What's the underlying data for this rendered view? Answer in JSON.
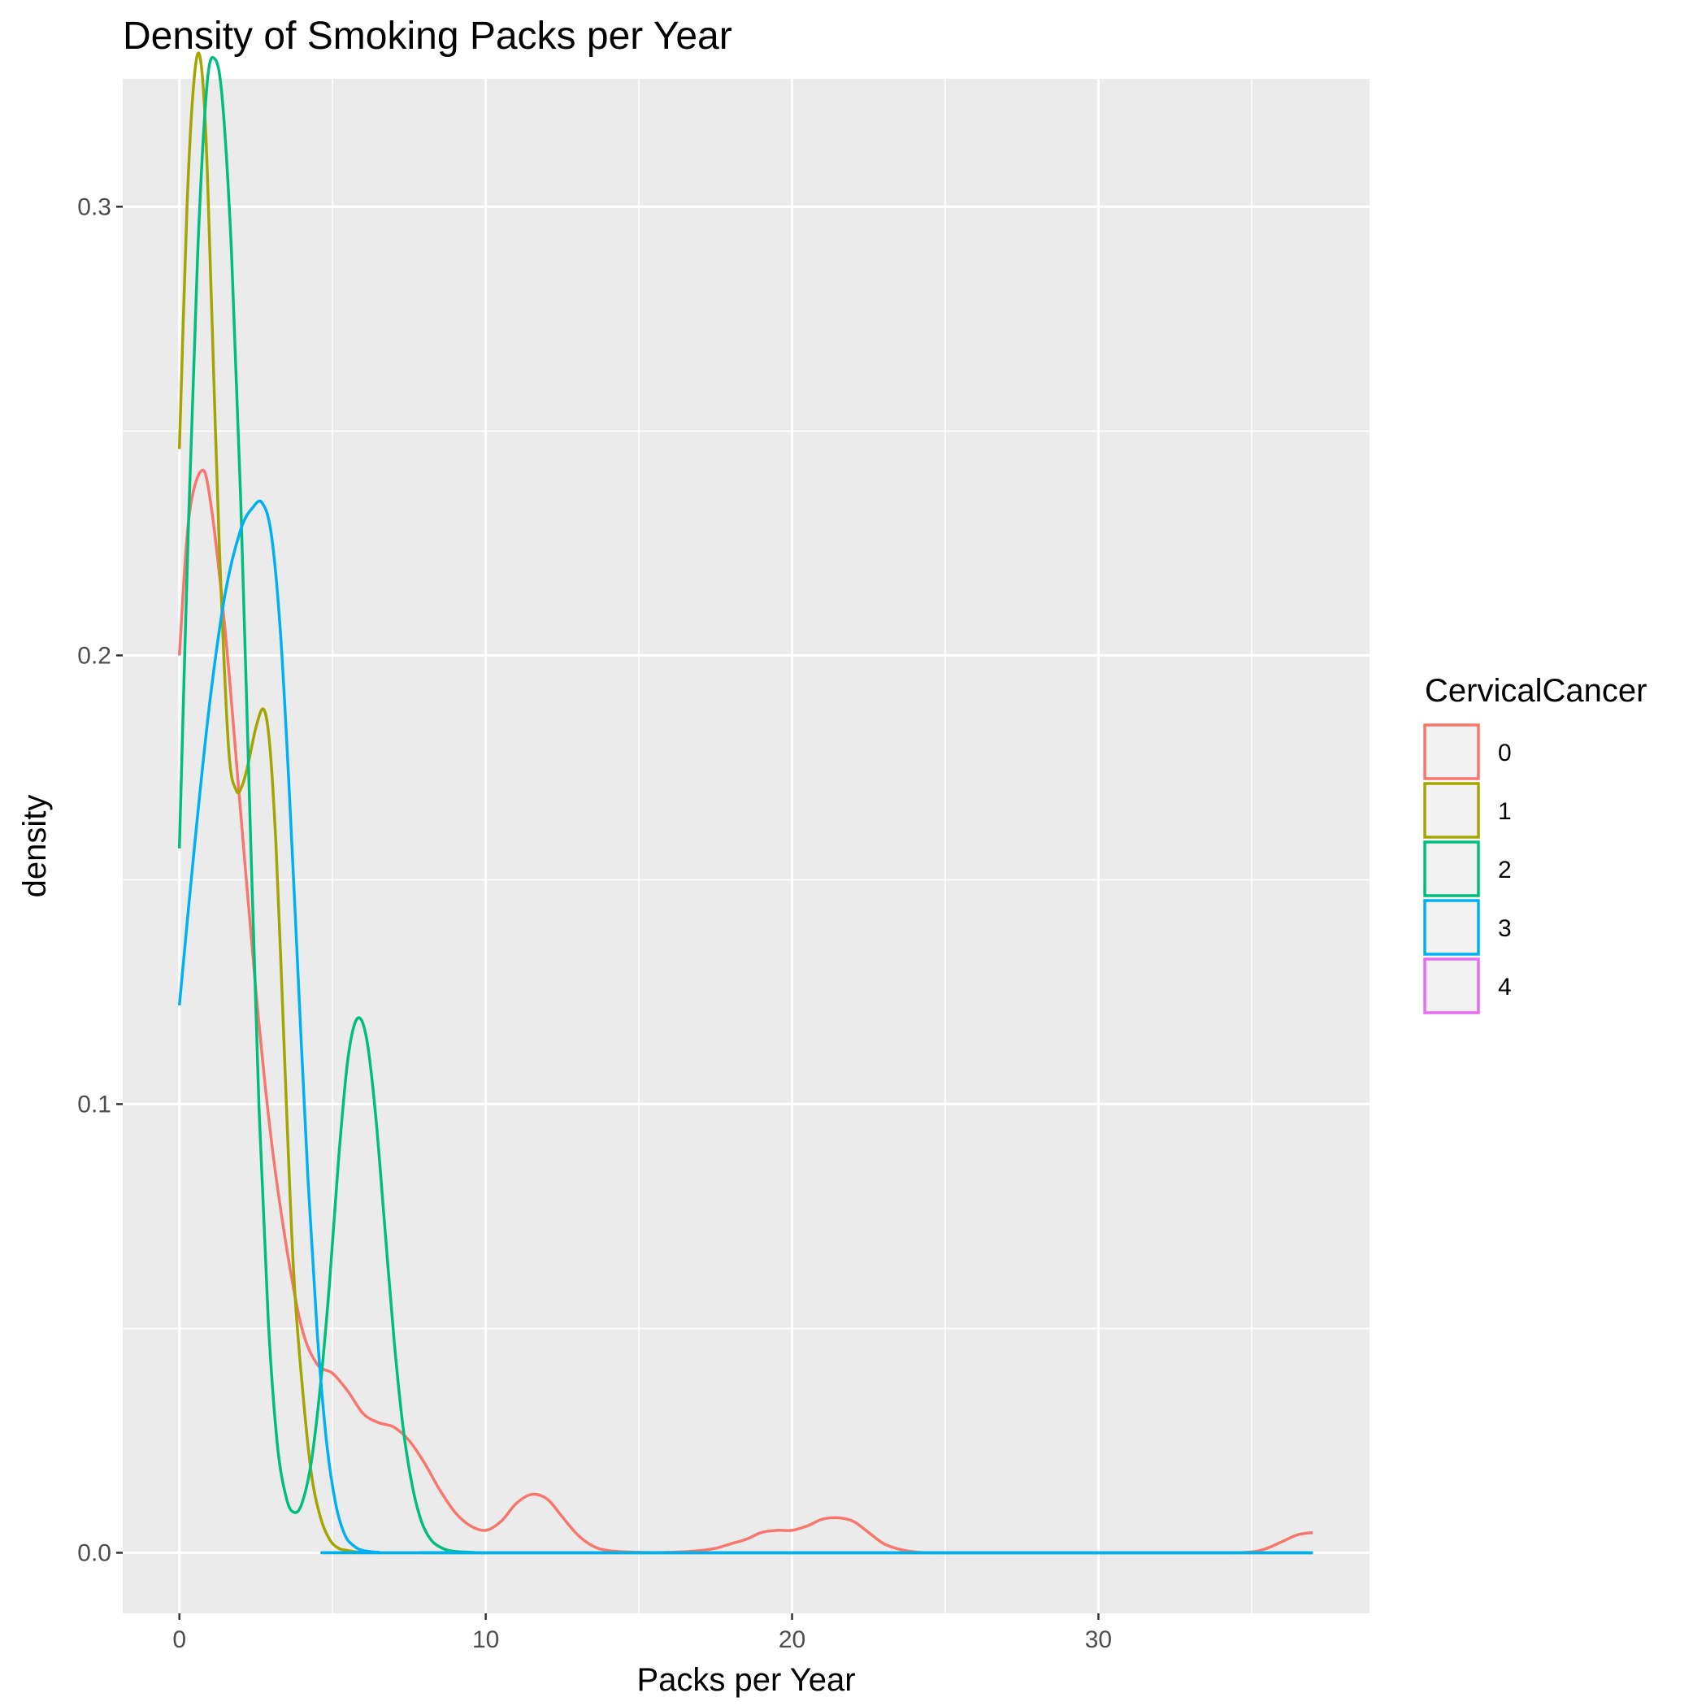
{
  "chart_data": {
    "type": "line",
    "title": "Density of Smoking Packs per Year",
    "xlabel": "Packs per Year",
    "ylabel": "density",
    "xlim": [
      -1.85,
      38.85
    ],
    "ylim": [
      -0.0135,
      0.3285
    ],
    "x_ticks": [
      0,
      10,
      20,
      30
    ],
    "y_ticks": [
      0.0,
      0.1,
      0.2,
      0.3
    ],
    "x_tick_labels": [
      "0",
      "10",
      "20",
      "30"
    ],
    "y_tick_labels": [
      "0.0",
      "0.1",
      "0.2",
      "0.3"
    ],
    "grid": true,
    "panel_background": "#ebebeb",
    "grid_color": "#ffffff",
    "legend": {
      "title": "CervicalCancer",
      "placement": "right",
      "entries": [
        "0",
        "1",
        "2",
        "3",
        "4"
      ]
    },
    "series": [
      {
        "name": "0",
        "color": "#F8766D",
        "x": [
          0,
          0.3,
          0.7,
          1.0,
          1.5,
          2.0,
          2.5,
          3.0,
          3.5,
          4.0,
          4.5,
          5.0,
          5.5,
          6.0,
          6.5,
          7.0,
          7.5,
          8.0,
          8.5,
          9.0,
          9.5,
          10.0,
          10.5,
          11.0,
          11.5,
          12.0,
          12.5,
          13.0,
          13.5,
          14.0,
          15.0,
          16.0,
          17.0,
          17.5,
          18.0,
          18.5,
          19.0,
          19.5,
          20.0,
          20.5,
          21.0,
          21.5,
          22.0,
          22.5,
          23.0,
          23.5,
          24.0,
          25.0,
          30.0,
          34.0,
          35.0,
          35.5,
          36.0,
          36.5,
          37.0
        ],
        "y": [
          0.2,
          0.23,
          0.241,
          0.235,
          0.205,
          0.165,
          0.125,
          0.092,
          0.068,
          0.05,
          0.042,
          0.04,
          0.036,
          0.031,
          0.029,
          0.028,
          0.025,
          0.02,
          0.014,
          0.009,
          0.006,
          0.005,
          0.007,
          0.011,
          0.013,
          0.012,
          0.008,
          0.004,
          0.0015,
          0.0005,
          0.0001,
          0.0001,
          0.0005,
          0.001,
          0.002,
          0.003,
          0.0045,
          0.005,
          0.005,
          0.006,
          0.0075,
          0.0078,
          0.007,
          0.0045,
          0.002,
          0.0008,
          0.0002,
          0.0,
          0.0,
          0.0,
          0.0002,
          0.001,
          0.0025,
          0.004,
          0.0045
        ]
      },
      {
        "name": "1",
        "color": "#A3A500",
        "x": [
          0,
          0.25,
          0.45,
          0.65,
          0.85,
          1.05,
          1.3,
          1.6,
          1.85,
          2.05,
          2.25,
          2.5,
          2.75,
          2.95,
          3.15,
          3.35,
          3.55,
          3.75,
          4.0,
          4.3,
          4.6,
          4.9,
          5.2,
          5.5,
          5.8,
          6.2,
          6.6,
          7.0,
          37.0
        ],
        "y": [
          0.246,
          0.3,
          0.326,
          0.334,
          0.318,
          0.278,
          0.225,
          0.18,
          0.17,
          0.171,
          0.176,
          0.184,
          0.188,
          0.18,
          0.158,
          0.125,
          0.09,
          0.06,
          0.038,
          0.018,
          0.008,
          0.003,
          0.001,
          0.0005,
          0.0002,
          0.0001,
          0.0,
          0.0,
          0.0
        ]
      },
      {
        "name": "2",
        "color": "#00BF7D",
        "x": [
          0,
          0.3,
          0.6,
          0.9,
          1.15,
          1.4,
          1.7,
          2.0,
          2.3,
          2.6,
          2.9,
          3.2,
          3.5,
          3.75,
          4.0,
          4.3,
          4.6,
          4.9,
          5.2,
          5.5,
          5.8,
          6.1,
          6.4,
          6.7,
          7.0,
          7.3,
          7.6,
          7.9,
          8.2,
          8.5,
          8.8,
          9.2,
          9.6,
          10.0,
          37.0
        ],
        "y": [
          0.157,
          0.23,
          0.29,
          0.327,
          0.333,
          0.324,
          0.29,
          0.235,
          0.165,
          0.099,
          0.052,
          0.024,
          0.012,
          0.009,
          0.011,
          0.02,
          0.037,
          0.06,
          0.088,
          0.11,
          0.119,
          0.115,
          0.098,
          0.073,
          0.048,
          0.028,
          0.015,
          0.007,
          0.003,
          0.0013,
          0.0005,
          0.0002,
          0.0001,
          0.0,
          0.0
        ]
      },
      {
        "name": "3",
        "color": "#00B0F6",
        "x": [
          0,
          0.5,
          1.0,
          1.5,
          2.0,
          2.4,
          2.7,
          3.0,
          3.3,
          3.6,
          3.9,
          4.2,
          4.5,
          4.8,
          5.1,
          5.4,
          5.7,
          6.0,
          6.5,
          7.0,
          37.0
        ],
        "y": [
          0.122,
          0.158,
          0.19,
          0.214,
          0.228,
          0.233,
          0.234,
          0.227,
          0.205,
          0.168,
          0.125,
          0.083,
          0.049,
          0.025,
          0.011,
          0.004,
          0.0015,
          0.0005,
          0.0001,
          0.0,
          0.0
        ]
      },
      {
        "name": "4",
        "color": "#E76BF3",
        "x": [],
        "y": []
      }
    ]
  }
}
